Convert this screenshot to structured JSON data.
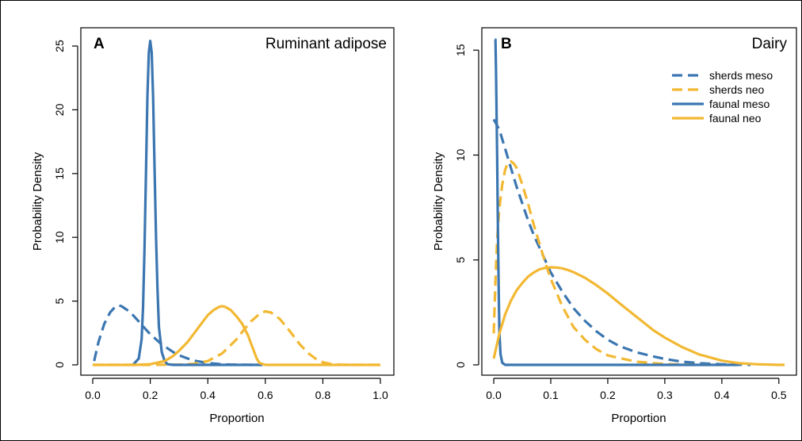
{
  "chart_data": [
    {
      "type": "line",
      "panel_label": "A",
      "title": "Ruminant adipose",
      "xlabel": "Proportion",
      "ylabel": "Probability Density",
      "xlim": [
        0,
        1
      ],
      "ylim": [
        0,
        25.5
      ],
      "x_ticks": [
        "0.0",
        "0.2",
        "0.4",
        "0.6",
        "0.8",
        "1.0"
      ],
      "x_tick_values": [
        0,
        0.2,
        0.4,
        0.6,
        0.8,
        1.0
      ],
      "y_ticks": [
        "0",
        "5",
        "10",
        "15",
        "20",
        "25"
      ],
      "y_tick_values": [
        0,
        5,
        10,
        15,
        20,
        25
      ],
      "series": [
        {
          "color": "#3b76b1",
          "dash": "dashed",
          "x": [
            0.005,
            0.02,
            0.04,
            0.06,
            0.08,
            0.09,
            0.1,
            0.12,
            0.14,
            0.16,
            0.18,
            0.2,
            0.22,
            0.24,
            0.26,
            0.28,
            0.3,
            0.33,
            0.36,
            0.4,
            0.44,
            0.48,
            0.52,
            0.56,
            0.58
          ],
          "y": [
            0.3,
            1.8,
            3.2,
            4.1,
            4.6,
            4.65,
            4.6,
            4.3,
            3.9,
            3.4,
            2.9,
            2.4,
            2.0,
            1.6,
            1.3,
            1.0,
            0.75,
            0.5,
            0.3,
            0.15,
            0.06,
            0.02,
            0.01,
            0.0,
            0.0
          ]
        },
        {
          "color": "#f2b832",
          "dash": "dashed",
          "x": [
            0.0,
            0.2,
            0.3,
            0.35,
            0.4,
            0.45,
            0.5,
            0.52,
            0.55,
            0.58,
            0.6,
            0.62,
            0.65,
            0.68,
            0.7,
            0.72,
            0.75,
            0.78,
            0.8,
            0.83,
            0.86,
            0.9,
            0.95,
            1.0
          ],
          "y": [
            0.0,
            0.0,
            0.02,
            0.08,
            0.3,
            0.9,
            2.0,
            2.6,
            3.4,
            4.0,
            4.2,
            4.1,
            3.6,
            2.8,
            2.2,
            1.6,
            0.9,
            0.4,
            0.2,
            0.06,
            0.02,
            0.0,
            0.0,
            0.0
          ]
        },
        {
          "color": "#3b76b1",
          "dash": "solid",
          "x": [
            0.14,
            0.16,
            0.17,
            0.175,
            0.18,
            0.185,
            0.19,
            0.195,
            0.2,
            0.205,
            0.21,
            0.215,
            0.22,
            0.225,
            0.23,
            0.24,
            0.25,
            0.26,
            0.28,
            0.3,
            0.35,
            0.45,
            0.59
          ],
          "y": [
            0.0,
            0.5,
            2.0,
            4.5,
            9.0,
            15.0,
            21.0,
            24.5,
            25.4,
            24.5,
            21.0,
            15.5,
            10.0,
            6.0,
            3.0,
            1.0,
            0.3,
            0.05,
            0.0,
            0.0,
            0.0,
            0.0,
            0.0
          ]
        },
        {
          "color": "#f2b832",
          "dash": "solid",
          "x": [
            0.0,
            0.15,
            0.2,
            0.25,
            0.28,
            0.3,
            0.33,
            0.36,
            0.38,
            0.4,
            0.42,
            0.44,
            0.45,
            0.46,
            0.48,
            0.5,
            0.52,
            0.54,
            0.55,
            0.56,
            0.57,
            0.58,
            0.6,
            0.8,
            1.0
          ],
          "y": [
            0.0,
            0.0,
            0.05,
            0.3,
            0.7,
            1.1,
            1.8,
            2.7,
            3.3,
            3.9,
            4.3,
            4.55,
            4.6,
            4.55,
            4.3,
            3.8,
            3.2,
            2.3,
            1.7,
            1.1,
            0.5,
            0.15,
            0.0,
            0.0,
            0.0
          ]
        }
      ]
    },
    {
      "type": "line",
      "panel_label": "B",
      "title": "Dairy",
      "xlabel": "Proportion",
      "ylabel": "Probability Density",
      "xlim": [
        0,
        0.51
      ],
      "ylim": [
        0,
        15.5
      ],
      "x_ticks": [
        "0.0",
        "0.1",
        "0.2",
        "0.3",
        "0.4",
        "0.5"
      ],
      "x_tick_values": [
        0,
        0.1,
        0.2,
        0.3,
        0.4,
        0.5
      ],
      "y_ticks": [
        "0",
        "5",
        "10",
        "15"
      ],
      "y_tick_values": [
        0,
        5,
        10,
        15
      ],
      "legend": {
        "position": "top-right",
        "entries": [
          {
            "label": "sherds meso",
            "color": "#3b76b1",
            "dash": "dashed"
          },
          {
            "label": "sherds neo",
            "color": "#f2b832",
            "dash": "dashed"
          },
          {
            "label": "faunal meso",
            "color": "#3b76b1",
            "dash": "solid"
          },
          {
            "label": "faunal neo",
            "color": "#f2b832",
            "dash": "solid"
          }
        ]
      },
      "series": [
        {
          "label": "sherds meso",
          "color": "#3b76b1",
          "dash": "dashed",
          "x": [
            0.0,
            0.01,
            0.02,
            0.03,
            0.04,
            0.05,
            0.06,
            0.07,
            0.08,
            0.09,
            0.1,
            0.12,
            0.14,
            0.16,
            0.18,
            0.2,
            0.22,
            0.25,
            0.28,
            0.3,
            0.33,
            0.36,
            0.4,
            0.45
          ],
          "y": [
            11.7,
            11.2,
            10.3,
            9.4,
            8.5,
            7.7,
            6.9,
            6.2,
            5.6,
            5.0,
            4.4,
            3.5,
            2.7,
            2.1,
            1.6,
            1.2,
            0.9,
            0.6,
            0.4,
            0.28,
            0.15,
            0.08,
            0.03,
            0.0
          ]
        },
        {
          "label": "sherds neo",
          "color": "#f2b832",
          "dash": "dashed",
          "x": [
            0.0,
            0.003,
            0.006,
            0.01,
            0.015,
            0.02,
            0.025,
            0.03,
            0.035,
            0.04,
            0.045,
            0.05,
            0.06,
            0.07,
            0.08,
            0.09,
            0.1,
            0.12,
            0.14,
            0.16,
            0.18,
            0.2,
            0.25,
            0.3,
            0.35,
            0.4
          ],
          "y": [
            1.5,
            4.0,
            6.0,
            7.5,
            8.6,
            9.3,
            9.65,
            9.7,
            9.6,
            9.4,
            9.0,
            8.6,
            7.7,
            6.7,
            5.8,
            4.9,
            4.1,
            2.8,
            1.8,
            1.2,
            0.75,
            0.45,
            0.15,
            0.04,
            0.0,
            0.0
          ]
        },
        {
          "label": "faunal meso",
          "color": "#3b76b1",
          "dash": "solid",
          "x": [
            0.002,
            0.003,
            0.004,
            0.005,
            0.006,
            0.007,
            0.008,
            0.009,
            0.01,
            0.012,
            0.015,
            0.02,
            0.05,
            0.1,
            0.2,
            0.3,
            0.4,
            0.43
          ],
          "y": [
            15.5,
            15.5,
            14.0,
            12.0,
            10.0,
            7.5,
            5.0,
            3.0,
            1.5,
            0.5,
            0.1,
            0.0,
            0.0,
            0.0,
            0.0,
            0.0,
            0.0,
            0.0
          ]
        },
        {
          "label": "faunal neo",
          "color": "#f2b832",
          "dash": "solid",
          "x": [
            0.0,
            0.005,
            0.01,
            0.02,
            0.03,
            0.04,
            0.05,
            0.06,
            0.07,
            0.08,
            0.09,
            0.1,
            0.11,
            0.12,
            0.13,
            0.14,
            0.16,
            0.18,
            0.2,
            0.22,
            0.25,
            0.28,
            0.3,
            0.33,
            0.36,
            0.4,
            0.43,
            0.46,
            0.5,
            0.51
          ],
          "y": [
            0.3,
            0.9,
            1.5,
            2.4,
            3.05,
            3.55,
            3.9,
            4.2,
            4.4,
            4.55,
            4.62,
            4.65,
            4.64,
            4.6,
            4.52,
            4.42,
            4.15,
            3.8,
            3.4,
            2.95,
            2.3,
            1.65,
            1.3,
            0.85,
            0.5,
            0.2,
            0.08,
            0.03,
            0.0,
            0.0
          ]
        }
      ]
    }
  ]
}
